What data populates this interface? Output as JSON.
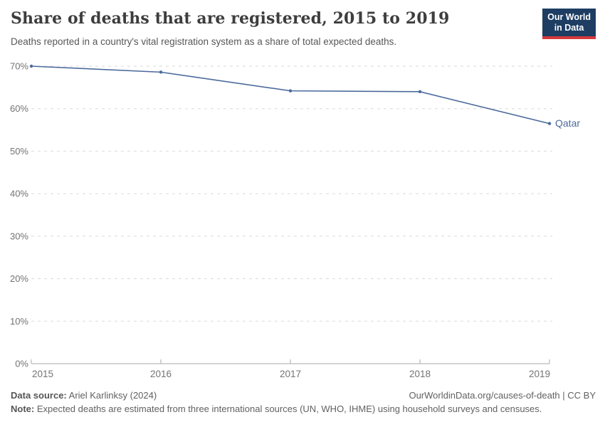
{
  "header": {
    "title": "Share of deaths that are registered, 2015 to 2019",
    "subtitle": "Deaths reported in a country's vital registration system as a share of total expected deaths.",
    "logo": {
      "line1": "Our World",
      "line2": "in Data"
    }
  },
  "chart_data": {
    "type": "line",
    "title": "Share of deaths that are registered, 2015 to 2019",
    "x": [
      2015,
      2016,
      2017,
      2018,
      2019
    ],
    "series": [
      {
        "name": "Qatar",
        "values": [
          70,
          68.6,
          64.2,
          64,
          56.5
        ],
        "color": "#4C6A9C"
      }
    ],
    "xticks": [
      "2015",
      "2016",
      "2017",
      "2018",
      "2019"
    ],
    "yticks": [
      0,
      10,
      20,
      30,
      40,
      50,
      60,
      70
    ],
    "ytick_suffix": "%",
    "ylim": [
      0,
      70
    ],
    "grid": "horizontal-dashed",
    "legend": "end-of-line-label",
    "colors": {
      "line": "#4C6A9C",
      "gridline": "#dadada",
      "axis": "#a8a8a8",
      "tick_label": "#737373"
    }
  },
  "footer": {
    "datasource_label": "Data source:",
    "datasource_value": " Ariel Karlinksy (2024)",
    "link": "OurWorldinData.org/causes-of-death | CC BY",
    "note_label": "Note:",
    "note_value": " Expected deaths are estimated from three international sources (UN, WHO, IHME) using household surveys and censuses."
  }
}
